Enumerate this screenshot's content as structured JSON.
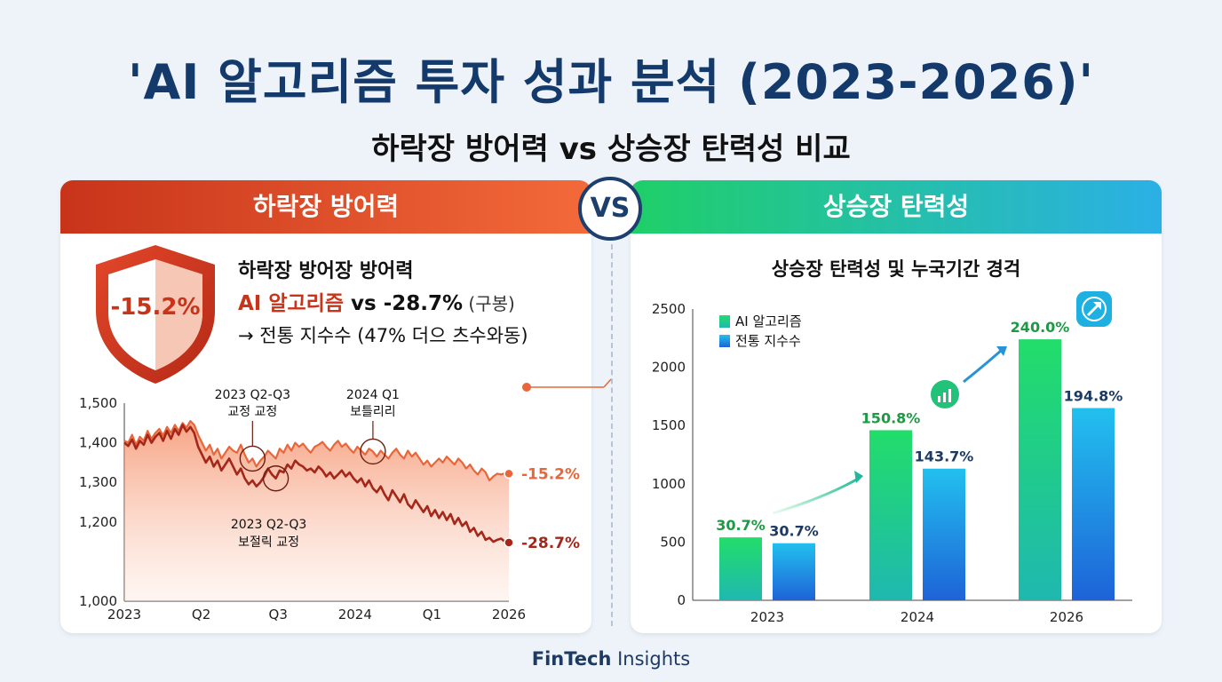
{
  "header": {
    "title": "'AI 알고리즘 투자 성과 분석 (2023-2026)'",
    "subtitle": "하락장 방어력 vs 상승장 탄력성 비교"
  },
  "vs_label": "VS",
  "left_panel": {
    "heading": "하락장 방어력",
    "shield_value": "-15.2%",
    "callout_line1": "하락장 방어장 방어력",
    "callout_ai": "AI 알고리즘",
    "callout_vs": " vs ",
    "callout_value": "-28.7%",
    "callout_paren": " (구봉)",
    "callout_line3": "→ 전통 지수수 (47% 더으 츠수와동)"
  },
  "right_panel": {
    "heading": "상승장 탄력성",
    "chart_title": "상승장 탄력성 및 누국기간 경걱"
  },
  "footer": {
    "brand_bold": "FinTech",
    "brand_light": " Insights"
  },
  "colors": {
    "ai_line": "#e8663a",
    "index_line": "#a5271a",
    "ai_bar_top": "#22dd6a",
    "index_bar_top": "#22c0ee",
    "green_label": "#1c9a44",
    "blue_label": "#1d3a63"
  },
  "chart_data": [
    {
      "type": "line",
      "ylim": [
        1000,
        1500
      ],
      "yticks": [
        1000,
        1200,
        1300,
        1400,
        1500
      ],
      "ytick_labels": [
        "1,000",
        "1,200",
        "1,300",
        "1,400",
        "1,500"
      ],
      "xtick_labels": [
        "2023",
        "Q2",
        "Q3",
        "2024",
        "Q1",
        "2026"
      ],
      "series": [
        {
          "end_label": "-15.2%",
          "values": [
            1405,
            1400,
            1420,
            1395,
            1415,
            1405,
            1430,
            1410,
            1425,
            1435,
            1418,
            1440,
            1425,
            1445,
            1430,
            1450,
            1438,
            1455,
            1445,
            1420,
            1400,
            1380,
            1395,
            1370,
            1385,
            1360,
            1375,
            1390,
            1380,
            1375,
            1395,
            1370,
            1350,
            1360,
            1340,
            1355,
            1365,
            1380,
            1370,
            1360,
            1385,
            1375,
            1395,
            1380,
            1400,
            1390,
            1398,
            1385,
            1375,
            1390,
            1395,
            1402,
            1390,
            1380,
            1395,
            1405,
            1390,
            1398,
            1385,
            1375,
            1390,
            1380,
            1370,
            1385,
            1378,
            1365,
            1380,
            1370,
            1360,
            1375,
            1385,
            1370,
            1360,
            1380,
            1365,
            1375,
            1360,
            1345,
            1355,
            1340,
            1350,
            1360,
            1350,
            1365,
            1355,
            1345,
            1360,
            1350,
            1335,
            1345,
            1330,
            1320,
            1335,
            1325,
            1305,
            1315,
            1322,
            1320,
            1323,
            1322
          ]
        },
        {
          "end_label": "-28.7%",
          "values": [
            1400,
            1392,
            1408,
            1385,
            1405,
            1395,
            1420,
            1400,
            1415,
            1425,
            1405,
            1430,
            1410,
            1435,
            1420,
            1445,
            1428,
            1440,
            1425,
            1390,
            1370,
            1350,
            1365,
            1340,
            1355,
            1330,
            1345,
            1360,
            1340,
            1320,
            1335,
            1310,
            1295,
            1305,
            1290,
            1300,
            1315,
            1335,
            1320,
            1310,
            1330,
            1325,
            1345,
            1335,
            1355,
            1345,
            1340,
            1330,
            1335,
            1325,
            1340,
            1330,
            1315,
            1325,
            1310,
            1320,
            1330,
            1315,
            1325,
            1310,
            1300,
            1310,
            1290,
            1305,
            1285,
            1275,
            1290,
            1270,
            1255,
            1280,
            1265,
            1250,
            1270,
            1245,
            1235,
            1255,
            1240,
            1225,
            1240,
            1215,
            1230,
            1210,
            1225,
            1205,
            1220,
            1195,
            1210,
            1190,
            1200,
            1175,
            1185,
            1165,
            1175,
            1155,
            1160,
            1150,
            1155,
            1158,
            1150,
            1148
          ]
        }
      ],
      "annotations": [
        {
          "label1": "2023 Q2-Q3",
          "label2": "교정 교정",
          "series": 0,
          "index": 33
        },
        {
          "label1": "2024 Q1",
          "label2": "보틀리리",
          "series": 0,
          "index": 64
        },
        {
          "label1": "2023 Q2-Q3",
          "label2": "보절릭 교정",
          "series": 1,
          "index": 39
        }
      ]
    },
    {
      "type": "bar",
      "ylim": [
        0,
        2500
      ],
      "yticks": [
        0,
        500,
        1000,
        1500,
        2000,
        2500
      ],
      "categories": [
        "2023",
        "2024",
        "2026"
      ],
      "series": [
        {
          "name": "AI 알고리즘",
          "values": [
            540,
            1460,
            2240
          ],
          "labels": [
            "30.7%",
            "150.8%",
            "240.0%"
          ]
        },
        {
          "name": "전통 지수수",
          "values": [
            490,
            1130,
            1650
          ],
          "labels": [
            "30.7%",
            "143.7%",
            "194.8%"
          ]
        }
      ]
    }
  ]
}
